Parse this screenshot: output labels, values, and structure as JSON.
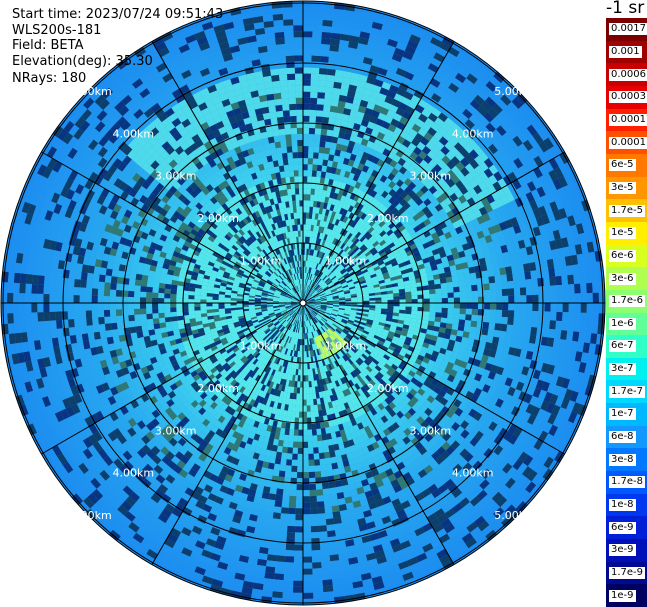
{
  "header": {
    "start_time": "Start time: 2023/07/24 09:51:43",
    "instrument": "WLS200s-181",
    "field": "Field: BETA",
    "elevation": "Elevation(deg): 35.30",
    "nrays": "NRays: 180"
  },
  "colorbar": {
    "title": "-1 sr",
    "labels": [
      "0.0017",
      "0.001",
      "0.0006",
      "0.0003",
      "0.00017",
      "0.0001",
      "6e-5",
      "3e-5",
      "1.7e-5",
      "1e-5",
      "6e-6",
      "3e-6",
      "1.7e-6",
      "1e-6",
      "6e-7",
      "3e-7",
      "1.7e-7",
      "1e-7",
      "6e-8",
      "3e-8",
      "1.7e-8",
      "1e-8",
      "6e-9",
      "3e-9",
      "1.7e-9",
      "1e-9"
    ],
    "colors": [
      "#7a0000",
      "#a00000",
      "#c80000",
      "#e60000",
      "#ff2000",
      "#ff5000",
      "#ff7800",
      "#ff9600",
      "#ffc000",
      "#ffee00",
      "#d8ff20",
      "#b0ff50",
      "#8cff70",
      "#60ff98",
      "#30ffc8",
      "#00f0f0",
      "#00d8ff",
      "#00b8ff",
      "#1298ff",
      "#0078ff",
      "#0058ff",
      "#0038f0",
      "#0020d8",
      "#0010b8",
      "#000a90",
      "#000060"
    ]
  },
  "ppi": {
    "range_labels": [
      "1.00km",
      "2.00km",
      "3.00km",
      "4.00km",
      "5.00km"
    ],
    "field_colors": {
      "background": "#27a6f0",
      "inner": "#5ff0e8",
      "mid": "#3fd2ee",
      "outer": "#1b8bf0",
      "dark": "#1060e8",
      "hot": "#c8ff5a"
    }
  }
}
